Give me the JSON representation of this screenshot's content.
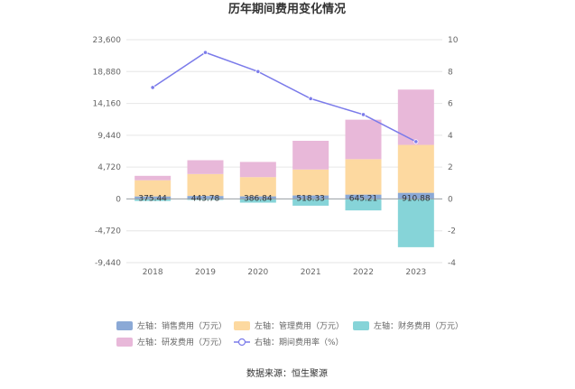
{
  "chart_data": {
    "type": "bar",
    "title": "历年期间费用变化情况",
    "categories": [
      "2018",
      "2019",
      "2020",
      "2021",
      "2022",
      "2023"
    ],
    "stacked": true,
    "y_left": {
      "ticks": [
        "23,600",
        "18,880",
        "14,160",
        "9,440",
        "4,720",
        "0",
        "-4,720",
        "-9,440"
      ],
      "ylim": [
        -9440,
        23600
      ]
    },
    "y_right": {
      "ticks": [
        "10",
        "8",
        "6",
        "4",
        "2",
        "0",
        "-2",
        "-4"
      ],
      "ylim": [
        -4,
        10
      ]
    },
    "series": [
      {
        "name": "左轴：销售费用（万元）",
        "axis": "left",
        "color": "#8ba9d6",
        "values": [
          375.44,
          443.78,
          386.84,
          518.33,
          645.21,
          910.88
        ],
        "labels": [
          "375.44",
          "443.78",
          "386.84",
          "518.33",
          "645.21",
          "910.88"
        ]
      },
      {
        "name": "左轴：管理费用（万元）",
        "axis": "left",
        "color": "#fdd9a0",
        "values": [
          2400,
          3250,
          2850,
          3850,
          5250,
          7100
        ]
      },
      {
        "name": "左轴：财务费用（万元）",
        "axis": "left",
        "color": "#86d4d8",
        "values": [
          -300,
          -150,
          -550,
          -1000,
          -1700,
          -7150
        ]
      },
      {
        "name": "左轴：研发费用（万元）",
        "axis": "left",
        "color": "#e8b8d9",
        "values": [
          650,
          2050,
          2250,
          4250,
          5850,
          8200
        ]
      }
    ],
    "line": {
      "name": "右轴：期间费用率（%）",
      "axis": "right",
      "color": "#7b7bea",
      "values": [
        7.0,
        9.2,
        8.0,
        6.3,
        5.3,
        3.6
      ]
    },
    "legend_position": "bottom",
    "grid": true,
    "source": "数据来源：恒生聚源"
  }
}
